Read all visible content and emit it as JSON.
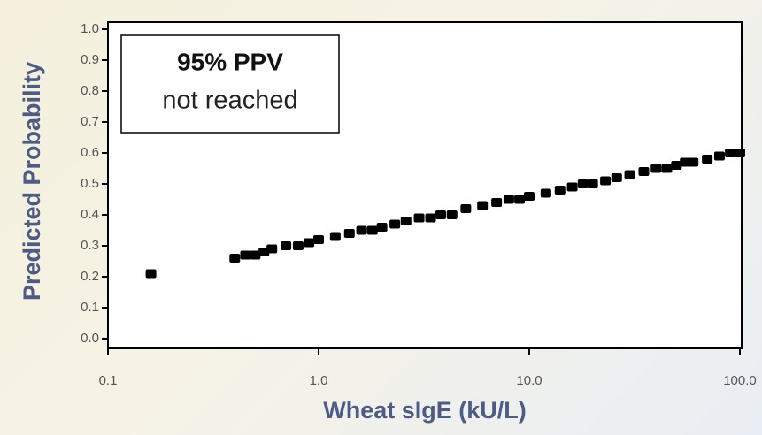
{
  "chart_data": {
    "type": "scatter",
    "x_label": "Wheat sIgE (kU/L)",
    "y_label": "Predicted Probability",
    "annotation": {
      "title": "95% PPV",
      "text": "not reached"
    },
    "color": "#000000",
    "xscale": "log",
    "xlim": [
      0.1,
      100
    ],
    "ylim": [
      0,
      1
    ],
    "xticks": [
      0.1,
      {
        "value": 1,
        "label": "1.0"
      },
      {
        "value": 10,
        "label": "10.0"
      },
      {
        "value": 100,
        "label": "100.0"
      }
    ],
    "yticks": [
      {
        "value": 0,
        "label": "0.0"
      },
      0.1,
      0.2,
      0.3,
      0.4,
      0.5,
      0.6,
      0.7,
      0.8,
      0.9,
      {
        "value": 1,
        "label": "1.0"
      }
    ],
    "x": [
      0.16,
      0.4,
      0.45,
      0.5,
      0.55,
      0.6,
      0.7,
      0.8,
      0.9,
      1.0,
      1.2,
      1.4,
      1.6,
      1.8,
      2.0,
      2.3,
      2.6,
      3.0,
      3.4,
      3.8,
      4.3,
      5,
      6,
      7,
      8,
      9,
      10,
      12,
      14,
      16,
      18,
      20,
      23,
      26,
      30,
      35,
      40,
      45,
      50,
      55,
      60,
      70,
      80,
      90,
      100
    ],
    "values": [
      0.21,
      0.26,
      0.27,
      0.27,
      0.28,
      0.29,
      0.3,
      0.3,
      0.31,
      0.32,
      0.33,
      0.34,
      0.35,
      0.35,
      0.36,
      0.37,
      0.38,
      0.39,
      0.39,
      0.4,
      0.4,
      0.42,
      0.43,
      0.44,
      0.45,
      0.45,
      0.46,
      0.47,
      0.48,
      0.49,
      0.5,
      0.5,
      0.51,
      0.52,
      0.53,
      0.54,
      0.55,
      0.55,
      0.56,
      0.57,
      0.57,
      0.58,
      0.59,
      0.6,
      0.6
    ]
  }
}
